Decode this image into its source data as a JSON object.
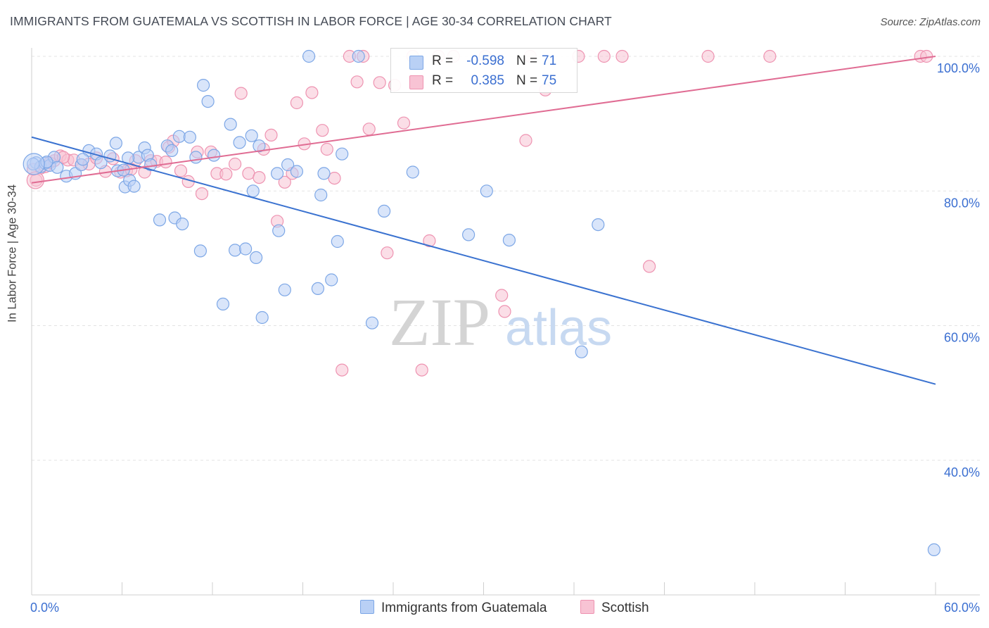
{
  "title": "IMMIGRANTS FROM GUATEMALA VS SCOTTISH IN LABOR FORCE | AGE 30-34 CORRELATION CHART",
  "source": "Source: ZipAtlas.com",
  "watermark": {
    "zip": "ZIP",
    "atlas": "atlas"
  },
  "colors": {
    "blue_fill": "#b9d0f5",
    "blue_stroke": "#7da7e6",
    "blue_line": "#3a72d0",
    "pink_fill": "#f8c3d4",
    "pink_stroke": "#ee93b1",
    "pink_line": "#e06c93",
    "axis_text": "#3b6fd1"
  },
  "legend": {
    "rows": [
      {
        "r_label": "R =",
        "r_value": "-0.598",
        "n_label": "N =",
        "n_value": "71"
      },
      {
        "r_label": "R =",
        "r_value": "0.385",
        "n_label": "N =",
        "n_value": "75"
      }
    ]
  },
  "bottom_legend": {
    "series1": "Immigrants from Guatemala",
    "series2": "Scottish"
  },
  "chart_data": {
    "type": "scatter",
    "ylabel": "In Labor Force | Age 30-34",
    "xlabel": "",
    "xlim": [
      0,
      60
    ],
    "ylim": [
      20,
      100
    ],
    "x_tick_labels": [
      "0.0%",
      "60.0%"
    ],
    "y_tick_labels": [
      "100.0%",
      "80.0%",
      "60.0%",
      "40.0%"
    ],
    "y_ticks": [
      100,
      80,
      60,
      40
    ],
    "grid": true,
    "series": [
      {
        "name": "Immigrants from Guatemala",
        "trend": {
          "x": [
            0,
            60
          ],
          "y": [
            88.0,
            51.3
          ]
        },
        "points": [
          [
            0.3,
            84.2
          ],
          [
            0.6,
            83.6
          ],
          [
            0.9,
            84.1
          ],
          [
            1.2,
            83.8
          ],
          [
            1.5,
            85.0
          ],
          [
            1.7,
            83.5
          ],
          [
            2.3,
            82.2
          ],
          [
            2.9,
            82.6
          ],
          [
            3.3,
            83.9
          ],
          [
            3.8,
            86.0
          ],
          [
            4.3,
            85.5
          ],
          [
            4.6,
            84.2
          ],
          [
            5.2,
            85.2
          ],
          [
            5.7,
            83.0
          ],
          [
            5.6,
            87.1
          ],
          [
            6.1,
            83.1
          ],
          [
            6.2,
            80.6
          ],
          [
            6.5,
            81.6
          ],
          [
            6.8,
            80.7
          ],
          [
            7.1,
            85.0
          ],
          [
            7.5,
            86.4
          ],
          [
            7.7,
            85.3
          ],
          [
            7.9,
            83.9
          ],
          [
            8.5,
            75.7
          ],
          [
            9.0,
            86.7
          ],
          [
            9.3,
            86.0
          ],
          [
            9.5,
            76.0
          ],
          [
            9.8,
            88.1
          ],
          [
            10.0,
            75.1
          ],
          [
            10.5,
            88.0
          ],
          [
            10.9,
            85.0
          ],
          [
            11.2,
            71.1
          ],
          [
            11.4,
            95.7
          ],
          [
            11.7,
            93.3
          ],
          [
            12.1,
            85.3
          ],
          [
            12.7,
            63.2
          ],
          [
            13.2,
            89.9
          ],
          [
            13.5,
            71.2
          ],
          [
            13.8,
            87.2
          ],
          [
            14.2,
            71.4
          ],
          [
            14.6,
            88.2
          ],
          [
            14.9,
            70.1
          ],
          [
            14.7,
            80.0
          ],
          [
            15.3,
            61.2
          ],
          [
            15.1,
            86.7
          ],
          [
            16.3,
            82.6
          ],
          [
            16.4,
            74.1
          ],
          [
            16.8,
            65.3
          ],
          [
            17.0,
            83.9
          ],
          [
            17.6,
            82.9
          ],
          [
            18.4,
            100.0
          ],
          [
            19.0,
            65.5
          ],
          [
            19.2,
            79.4
          ],
          [
            19.4,
            82.6
          ],
          [
            19.9,
            66.8
          ],
          [
            20.3,
            72.5
          ],
          [
            20.6,
            85.5
          ],
          [
            21.7,
            100.0
          ],
          [
            22.6,
            60.4
          ],
          [
            23.4,
            77.0
          ],
          [
            25.3,
            82.8
          ],
          [
            29.0,
            73.5
          ],
          [
            30.2,
            80.0
          ],
          [
            31.7,
            72.7
          ],
          [
            36.5,
            56.1
          ],
          [
            37.6,
            75.0
          ],
          [
            59.9,
            26.7
          ],
          [
            0.1,
            84.0
          ],
          [
            1.0,
            84.3
          ],
          [
            3.4,
            84.7
          ],
          [
            6.4,
            84.9
          ]
        ]
      },
      {
        "name": "Scottish",
        "trend": {
          "x": [
            0,
            60
          ],
          "y": [
            81.2,
            100.0
          ]
        },
        "points": [
          [
            0.3,
            81.6
          ],
          [
            0.6,
            83.4
          ],
          [
            0.9,
            83.6
          ],
          [
            1.2,
            84.2
          ],
          [
            1.5,
            84.5
          ],
          [
            1.9,
            85.2
          ],
          [
            2.4,
            84.6
          ],
          [
            2.8,
            84.6
          ],
          [
            3.3,
            83.9
          ],
          [
            3.8,
            84.0
          ],
          [
            4.3,
            84.9
          ],
          [
            4.9,
            82.9
          ],
          [
            5.4,
            84.8
          ],
          [
            5.9,
            82.8
          ],
          [
            6.3,
            83.0
          ],
          [
            6.9,
            84.5
          ],
          [
            7.5,
            82.8
          ],
          [
            7.9,
            84.5
          ],
          [
            8.3,
            84.4
          ],
          [
            8.9,
            84.3
          ],
          [
            9.1,
            86.5
          ],
          [
            9.4,
            87.4
          ],
          [
            9.9,
            83.0
          ],
          [
            10.4,
            81.4
          ],
          [
            11.0,
            85.8
          ],
          [
            11.3,
            79.6
          ],
          [
            11.9,
            85.8
          ],
          [
            12.3,
            82.6
          ],
          [
            12.9,
            82.5
          ],
          [
            13.5,
            84.0
          ],
          [
            13.9,
            94.5
          ],
          [
            14.4,
            82.6
          ],
          [
            15.1,
            82.0
          ],
          [
            15.4,
            86.2
          ],
          [
            15.9,
            88.3
          ],
          [
            16.3,
            75.5
          ],
          [
            16.8,
            81.3
          ],
          [
            17.3,
            82.6
          ],
          [
            17.6,
            93.1
          ],
          [
            18.1,
            87.0
          ],
          [
            18.6,
            94.6
          ],
          [
            19.3,
            89.0
          ],
          [
            19.6,
            86.2
          ],
          [
            20.1,
            81.9
          ],
          [
            20.6,
            53.4
          ],
          [
            21.1,
            100.0
          ],
          [
            21.6,
            96.2
          ],
          [
            22.0,
            100.0
          ],
          [
            22.4,
            89.2
          ],
          [
            23.1,
            96.1
          ],
          [
            23.6,
            70.8
          ],
          [
            24.1,
            95.7
          ],
          [
            24.7,
            90.1
          ],
          [
            25.3,
            100.0
          ],
          [
            25.9,
            53.4
          ],
          [
            26.4,
            72.6
          ],
          [
            27.0,
            100.0
          ],
          [
            28.0,
            100.0
          ],
          [
            30.1,
            100.0
          ],
          [
            31.2,
            64.5
          ],
          [
            31.4,
            62.1
          ],
          [
            32.8,
            87.5
          ],
          [
            33.1,
            100.0
          ],
          [
            34.1,
            95.0
          ],
          [
            36.3,
            100.0
          ],
          [
            38.0,
            100.0
          ],
          [
            39.2,
            100.0
          ],
          [
            41.0,
            68.8
          ],
          [
            44.9,
            100.0
          ],
          [
            49.0,
            100.0
          ],
          [
            59.0,
            100.0
          ],
          [
            59.4,
            100.0
          ],
          [
            0.1,
            83.2
          ],
          [
            2.1,
            85.0
          ],
          [
            6.6,
            83.2
          ]
        ]
      }
    ]
  }
}
